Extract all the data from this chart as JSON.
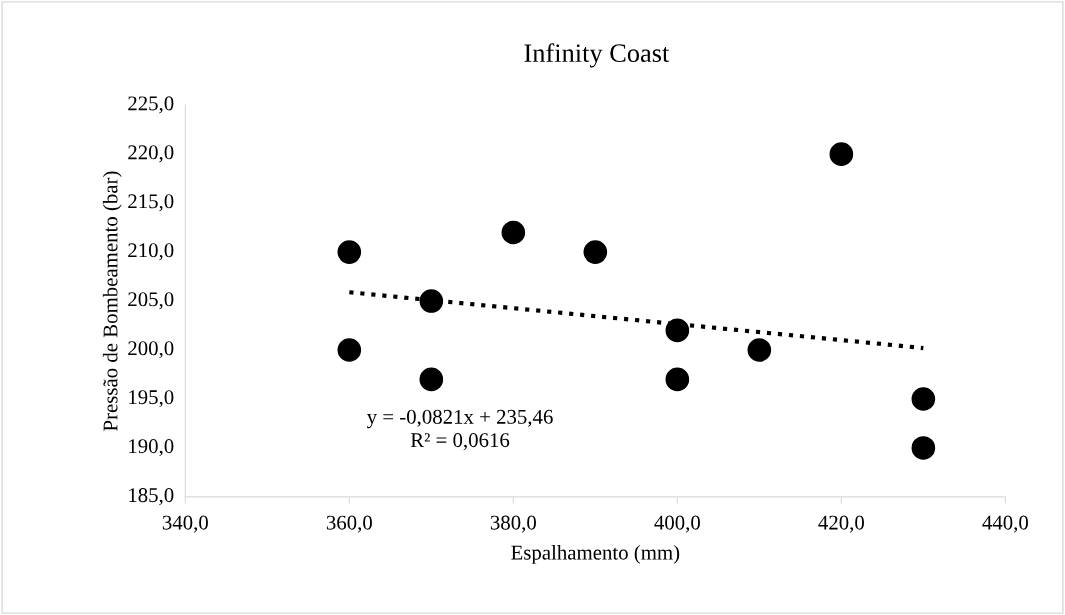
{
  "chart_data": {
    "type": "scatter",
    "title": "Infinity Coast",
    "xlabel": "Espalhamento (mm)",
    "ylabel": "Pressão de Bombeamento (bar)",
    "series": [
      {
        "type": "scatter",
        "color": "#000000",
        "marker": "circle",
        "x": [
          360,
          360,
          370,
          370,
          380,
          390,
          400,
          400,
          410,
          420,
          430,
          430
        ],
        "values": [
          210,
          200,
          205,
          197,
          212,
          210,
          202,
          197,
          200,
          220,
          195,
          190
        ]
      },
      {
        "type": "line",
        "color": "#000000",
        "line_style": "dotted",
        "marker": "none",
        "x": [
          360,
          430
        ],
        "values": [
          205.9,
          200.2
        ]
      }
    ],
    "xlim": [
      340,
      440
    ],
    "xticks": [
      {
        "value": 340,
        "label": "340,0"
      },
      {
        "value": 360,
        "label": "360,0"
      },
      {
        "value": 380,
        "label": "380,0"
      },
      {
        "value": 400,
        "label": "400,0"
      },
      {
        "value": 420,
        "label": "420,0"
      },
      {
        "value": 440,
        "label": "440,0"
      }
    ],
    "ylim": [
      185,
      225
    ],
    "yticks": [
      {
        "value": 185,
        "label": "185,0"
      },
      {
        "value": 190,
        "label": "190,0"
      },
      {
        "value": 195,
        "label": "195,0"
      },
      {
        "value": 200,
        "label": "200,0"
      },
      {
        "value": 205,
        "label": "205,0"
      },
      {
        "value": 210,
        "label": "210,0"
      },
      {
        "value": 215,
        "label": "215,0"
      },
      {
        "value": 220,
        "label": "220,0"
      },
      {
        "value": 225,
        "label": "225,0"
      }
    ],
    "grid": false,
    "legend": false,
    "annotations": [
      "y = -0,0821x + 235,46\nR² = 0,0616"
    ]
  }
}
